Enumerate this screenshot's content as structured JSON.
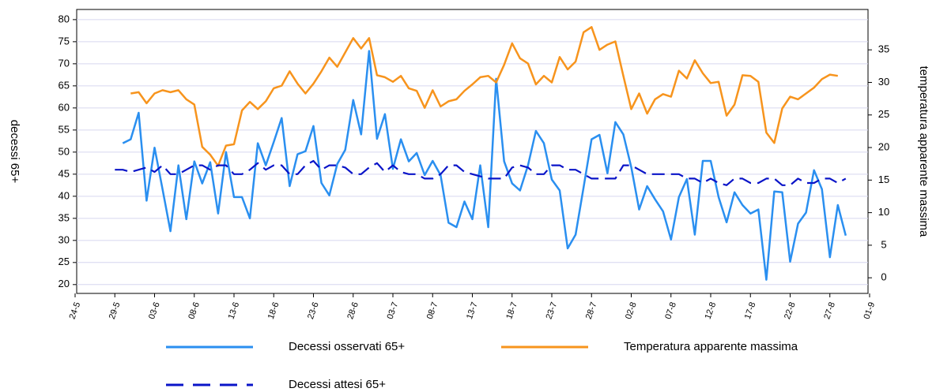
{
  "chart_data": {
    "type": "line",
    "y_label": "decessi 65+",
    "y2_label": "temperatura apparente massima",
    "categories": [
      "24-5",
      null,
      null,
      null,
      null,
      "29-5",
      null,
      null,
      null,
      null,
      "03-6",
      null,
      null,
      null,
      null,
      "08-6",
      null,
      null,
      null,
      null,
      "13-6",
      null,
      null,
      null,
      null,
      "18-6",
      null,
      null,
      null,
      null,
      "23-6",
      null,
      null,
      null,
      null,
      "28-6",
      null,
      null,
      null,
      null,
      "03-7",
      null,
      null,
      null,
      null,
      "08-7",
      null,
      null,
      null,
      null,
      "13-7",
      null,
      null,
      null,
      null,
      "18-7",
      null,
      null,
      null,
      null,
      "23-7",
      null,
      null,
      null,
      null,
      "28-7",
      null,
      null,
      null,
      null,
      "02-8",
      null,
      null,
      null,
      null,
      "07-8",
      null,
      null,
      null,
      null,
      "12-8",
      null,
      null,
      null,
      null,
      "17-8",
      null,
      null,
      null,
      null,
      "22-8",
      null,
      null,
      null,
      null,
      "27-8",
      null,
      null,
      null,
      null,
      "01-9"
    ],
    "ylim": [
      18,
      82.3
    ],
    "yticks": [
      20,
      25,
      30,
      35,
      40,
      45,
      50,
      55,
      60,
      65,
      70,
      75,
      80
    ],
    "y2lim": [
      -2.4,
      41.2
    ],
    "y2ticks": [
      0,
      5,
      10,
      15,
      20,
      25,
      30,
      35
    ],
    "grid": true,
    "series": [
      {
        "name": "Decessi osservati 65+",
        "color": "#2a8ff0",
        "line_style": "solid",
        "values": [
          null,
          null,
          null,
          null,
          null,
          null,
          52,
          52.9,
          58.9,
          39,
          51,
          41.6,
          32.1,
          47,
          34.8,
          47.9,
          42.9,
          47.7,
          36.1,
          50,
          39.8,
          39.8,
          35,
          52,
          47,
          52.3,
          57.7,
          42.3,
          49.5,
          50.2,
          55.9,
          43,
          40.2,
          47.3,
          50.5,
          61.8,
          54,
          72.9,
          53,
          58.6,
          46.2,
          52.9,
          47.9,
          49.8,
          44.8,
          48,
          44.8,
          34,
          33,
          38.8,
          34.8,
          47,
          33,
          66.6,
          47.9,
          42.9,
          41.3,
          47,
          54.8,
          52,
          43.8,
          41.3,
          28.2,
          31.3,
          42,
          52.9,
          53.9,
          45.2,
          56.8,
          54,
          46.6,
          37,
          42.3,
          39.3,
          36.6,
          30.2,
          39.8,
          43.9,
          31.3,
          48,
          48,
          39.8,
          34.1,
          40.9,
          38,
          36.1,
          37,
          21.1,
          41.1,
          40.9,
          25.2,
          33.8,
          36.3,
          45.9,
          41.6,
          26.2,
          38,
          31.1,
          null,
          null,
          null
        ]
      },
      {
        "name": "Temperatura apparente massima",
        "color": "#f7941d",
        "line_style": "solid",
        "axis": "y2",
        "values": [
          null,
          null,
          null,
          null,
          null,
          null,
          null,
          28.3,
          28.5,
          26.8,
          28.3,
          28.8,
          28.5,
          28.8,
          27.4,
          26.6,
          20.1,
          18.9,
          17.2,
          20.3,
          20.5,
          25.7,
          27,
          25.9,
          27.1,
          29.1,
          29.5,
          31.7,
          29.8,
          28.3,
          29.8,
          31.7,
          33.8,
          32.4,
          34.6,
          36.8,
          35.2,
          36.8,
          31.1,
          30.8,
          30.1,
          31,
          29.1,
          28.7,
          26.1,
          28.8,
          26.3,
          27.1,
          27.4,
          28.7,
          29.7,
          30.8,
          31,
          30,
          32.7,
          36,
          33.7,
          32.9,
          29.7,
          31,
          30,
          33.9,
          32,
          33.2,
          37.7,
          38.5,
          35,
          35.8,
          36.3,
          31,
          25.9,
          28.3,
          25.2,
          27.4,
          28.2,
          27.8,
          31.8,
          30.6,
          33.4,
          31.4,
          29.9,
          30.1,
          24.9,
          26.6,
          31.1,
          31,
          30.1,
          22.3,
          20.7,
          26,
          27.8,
          27.4,
          28.3,
          29.2,
          30.5,
          31.2,
          31,
          null,
          null,
          null,
          null
        ]
      },
      {
        "name": "Decessi attesi 65+",
        "color": "#0a14c8",
        "line_style": "dashed",
        "values": [
          null,
          null,
          null,
          null,
          null,
          46,
          46,
          45.5,
          46,
          46.5,
          45.5,
          47,
          45,
          45,
          46,
          47,
          47,
          46,
          47,
          47,
          45,
          45,
          46,
          47.5,
          46,
          47,
          47,
          45,
          45,
          47,
          48,
          46,
          47,
          47,
          46.5,
          45,
          45,
          46.5,
          47.5,
          45.5,
          47,
          45.5,
          45,
          45,
          44,
          44,
          45,
          47,
          47,
          45.5,
          45,
          44.5,
          44,
          44,
          44,
          46.5,
          47,
          46.5,
          45,
          45,
          47,
          47,
          46,
          46,
          45,
          44,
          44,
          44,
          44,
          47,
          47,
          46,
          45,
          45,
          45,
          45,
          45,
          44,
          44,
          43,
          44,
          43,
          42.5,
          44,
          44,
          43,
          43,
          44,
          44,
          42.5,
          42.5,
          44,
          43,
          43,
          44,
          44,
          43,
          44,
          null,
          null,
          null
        ]
      }
    ]
  }
}
